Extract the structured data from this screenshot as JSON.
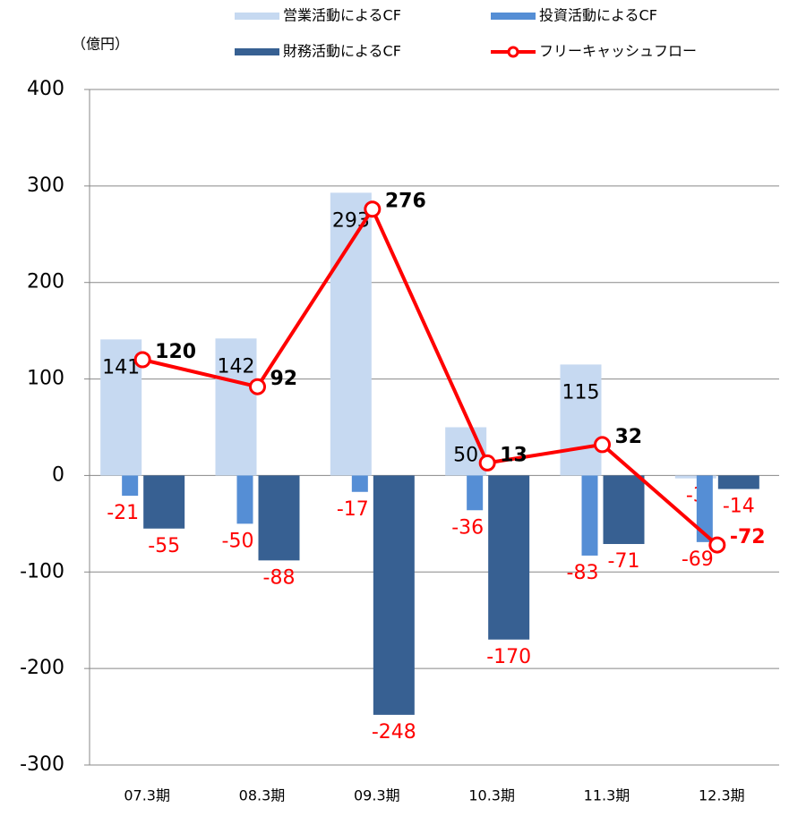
{
  "chart_data": {
    "type": "bar_line",
    "unit_label": "（億円）",
    "categories": [
      "07.3期",
      "08.3期",
      "09.3期",
      "10.3期",
      "11.3期",
      "12.3期"
    ],
    "series": [
      {
        "name": "営業活動によるCF",
        "color": "#c6d9f1",
        "kind": "bar",
        "values": [
          141,
          142,
          293,
          50,
          115,
          -3
        ]
      },
      {
        "name": "投資活動によるCF",
        "color": "#558ed5",
        "kind": "bar",
        "values": [
          -21,
          -50,
          -17,
          -36,
          -83,
          -69
        ]
      },
      {
        "name": "財務活動によるCF",
        "color": "#376092",
        "kind": "bar",
        "values": [
          -55,
          -88,
          -248,
          -170,
          -71,
          -14
        ]
      },
      {
        "name": "フリーキャッシュフロー",
        "color": "#ff0000",
        "kind": "line",
        "values": [
          120,
          92,
          276,
          13,
          32,
          -72
        ]
      }
    ],
    "ylim": [
      -300,
      400
    ],
    "yticks": [
      -300,
      -200,
      -100,
      0,
      100,
      200,
      300,
      400
    ],
    "grid": true
  }
}
